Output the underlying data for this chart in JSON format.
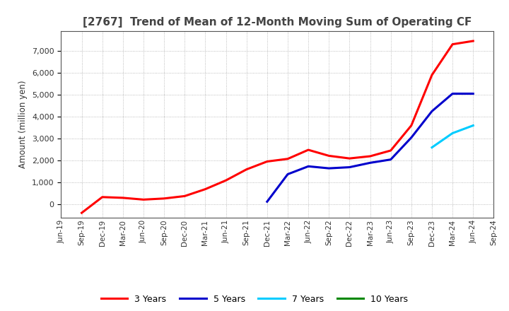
{
  "title": "[2767]  Trend of Mean of 12-Month Moving Sum of Operating CF",
  "title_color": "#444444",
  "ylabel": "Amount (million yen)",
  "background_color": "#ffffff",
  "grid_color": "#aaaaaa",
  "series_order": [
    "3 Years",
    "5 Years",
    "7 Years",
    "10 Years"
  ],
  "series": {
    "3 Years": {
      "color": "#ff0000",
      "dates": [
        "Sep-19",
        "Dec-19",
        "Mar-20",
        "Jun-20",
        "Sep-20",
        "Dec-20",
        "Mar-21",
        "Jun-21",
        "Sep-21",
        "Dec-21",
        "Mar-22",
        "Jun-22",
        "Sep-22",
        "Dec-22",
        "Mar-23",
        "Jun-23",
        "Sep-23",
        "Dec-23",
        "Mar-24",
        "Jun-24"
      ],
      "values": [
        -380,
        340,
        305,
        225,
        275,
        385,
        700,
        1100,
        1600,
        1960,
        2080,
        2490,
        2220,
        2100,
        2200,
        2460,
        3600,
        5900,
        7300,
        7450
      ]
    },
    "5 Years": {
      "color": "#0000cc",
      "dates": [
        "Dec-21",
        "Mar-22",
        "Jun-22",
        "Sep-22",
        "Dec-22",
        "Mar-23",
        "Jun-23",
        "Sep-23",
        "Dec-23",
        "Mar-24",
        "Jun-24"
      ],
      "values": [
        130,
        1380,
        1740,
        1650,
        1700,
        1900,
        2050,
        3050,
        4250,
        5050,
        5050
      ]
    },
    "7 Years": {
      "color": "#00ccff",
      "dates": [
        "Dec-23",
        "Mar-24",
        "Jun-24"
      ],
      "values": [
        2600,
        3250,
        3600
      ]
    },
    "10 Years": {
      "color": "#008800",
      "dates": [],
      "values": []
    }
  },
  "ylim": [
    -600,
    7900
  ],
  "yticks": [
    0,
    1000,
    2000,
    3000,
    4000,
    5000,
    6000,
    7000
  ],
  "all_dates": [
    "Jun-19",
    "Sep-19",
    "Dec-19",
    "Mar-20",
    "Jun-20",
    "Sep-20",
    "Dec-20",
    "Mar-21",
    "Jun-21",
    "Sep-21",
    "Dec-21",
    "Mar-22",
    "Jun-22",
    "Sep-22",
    "Dec-22",
    "Mar-23",
    "Jun-23",
    "Sep-23",
    "Dec-23",
    "Mar-24",
    "Jun-24",
    "Sep-24"
  ],
  "xlim_start": "Jun-19",
  "xlim_end": "Sep-24",
  "linewidth": 2.2
}
